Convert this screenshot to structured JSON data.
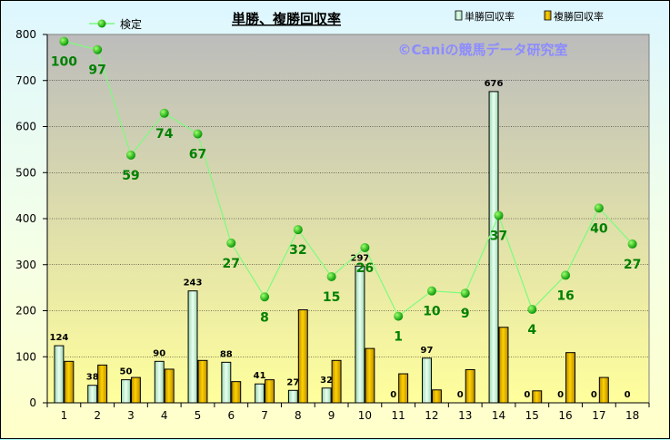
{
  "chart_data": {
    "type": "bar",
    "title": "単勝、複勝回収率",
    "watermark": "©Caniの競馬データ研究室",
    "categories": [
      "1",
      "2",
      "3",
      "4",
      "5",
      "6",
      "7",
      "8",
      "9",
      "10",
      "11",
      "12",
      "13",
      "14",
      "15",
      "16",
      "17",
      "18"
    ],
    "ylim": [
      0,
      800
    ],
    "yticks": [
      0,
      100,
      200,
      300,
      400,
      500,
      600,
      700,
      800
    ],
    "series": [
      {
        "name": "単勝回収率",
        "kind": "bar",
        "color": "#c8f0d8",
        "values": [
          124,
          38,
          50,
          90,
          243,
          88,
          41,
          27,
          32,
          297,
          0,
          97,
          0,
          676,
          0,
          0,
          0,
          0
        ]
      },
      {
        "name": "複勝回収率",
        "kind": "bar",
        "color": "#f0c000",
        "values": [
          90,
          82,
          55,
          73,
          92,
          46,
          50,
          202,
          92,
          118,
          63,
          28,
          72,
          164,
          26,
          109,
          55,
          0
        ]
      },
      {
        "name": "検定",
        "kind": "line",
        "color": "#00b000",
        "values": [
          785,
          767,
          538,
          629,
          584,
          347,
          230,
          376,
          274,
          337,
          188,
          243,
          238,
          407,
          203,
          277,
          423,
          345
        ],
        "labels": [
          "100",
          "97",
          "59",
          "74",
          "67",
          "27",
          "8",
          "32",
          "15",
          "26",
          "1",
          "10",
          "9",
          "37",
          "4",
          "16",
          "40",
          "27"
        ]
      }
    ],
    "grid": true,
    "legend": "top"
  },
  "colors": {
    "plot_top": "#bcbcbc",
    "plot_bottom": "#ffff9c",
    "grid": "#000000",
    "line": "#7cfc7c",
    "marker": "#00aa00",
    "label": "#008000"
  }
}
